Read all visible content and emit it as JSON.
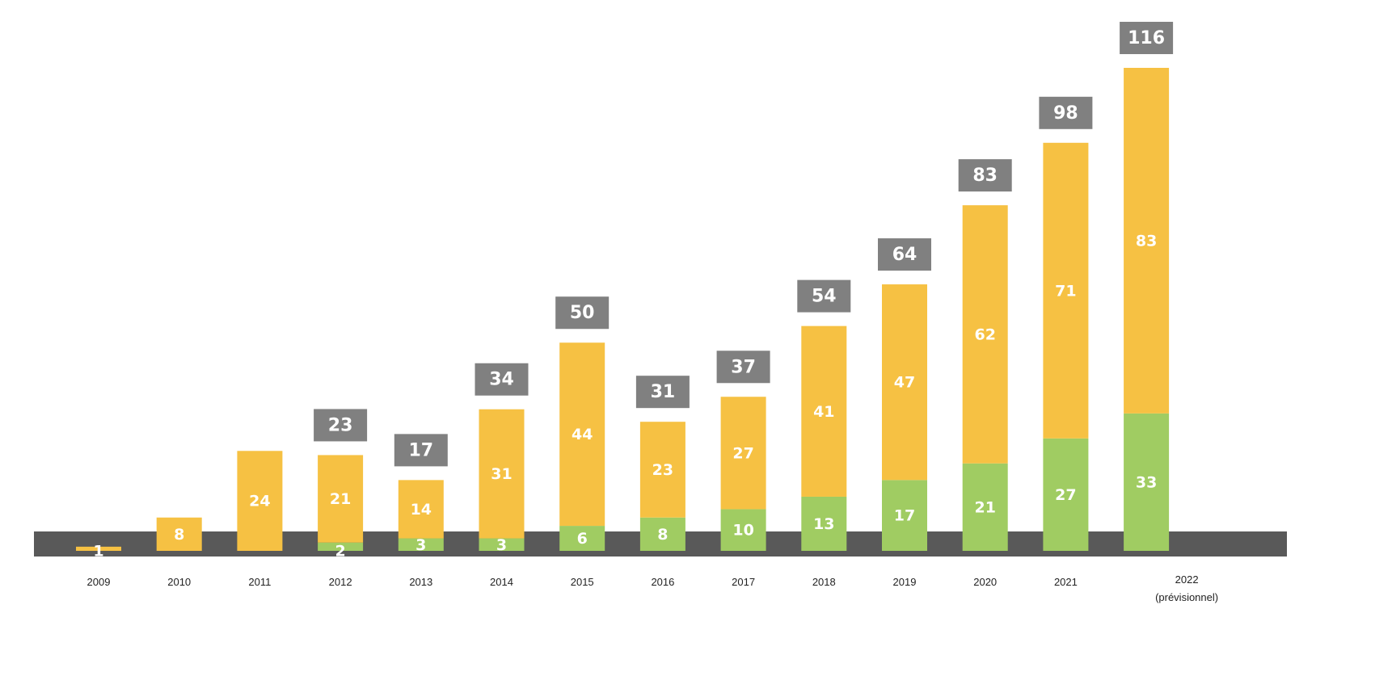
{
  "chart_data": {
    "type": "bar",
    "stacked": true,
    "title": "",
    "xlabel": "",
    "ylabel": "",
    "categories": [
      "2009",
      "2010",
      "2011",
      "2012",
      "2013",
      "2014",
      "2015",
      "2016",
      "2017",
      "2018",
      "2019",
      "2020",
      "2021",
      "2022"
    ],
    "category_notes": {
      "2022": "(prévisionnel)"
    },
    "series": [
      {
        "name": "green",
        "color": "#A0CC62",
        "values": [
          0,
          0,
          0,
          2,
          3,
          3,
          6,
          8,
          10,
          13,
          17,
          21,
          27,
          33
        ]
      },
      {
        "name": "yellow",
        "color": "#F6C143",
        "values": [
          1,
          8,
          24,
          21,
          14,
          31,
          44,
          23,
          27,
          41,
          47,
          62,
          71,
          83
        ]
      }
    ],
    "totals": [
      null,
      null,
      null,
      23,
      17,
      34,
      50,
      31,
      37,
      54,
      64,
      83,
      98,
      116
    ],
    "ylim": [
      0,
      120
    ],
    "grid": false,
    "legend": "none",
    "colors": {
      "baseline_band": "#595959",
      "total_box": "#808080"
    }
  }
}
